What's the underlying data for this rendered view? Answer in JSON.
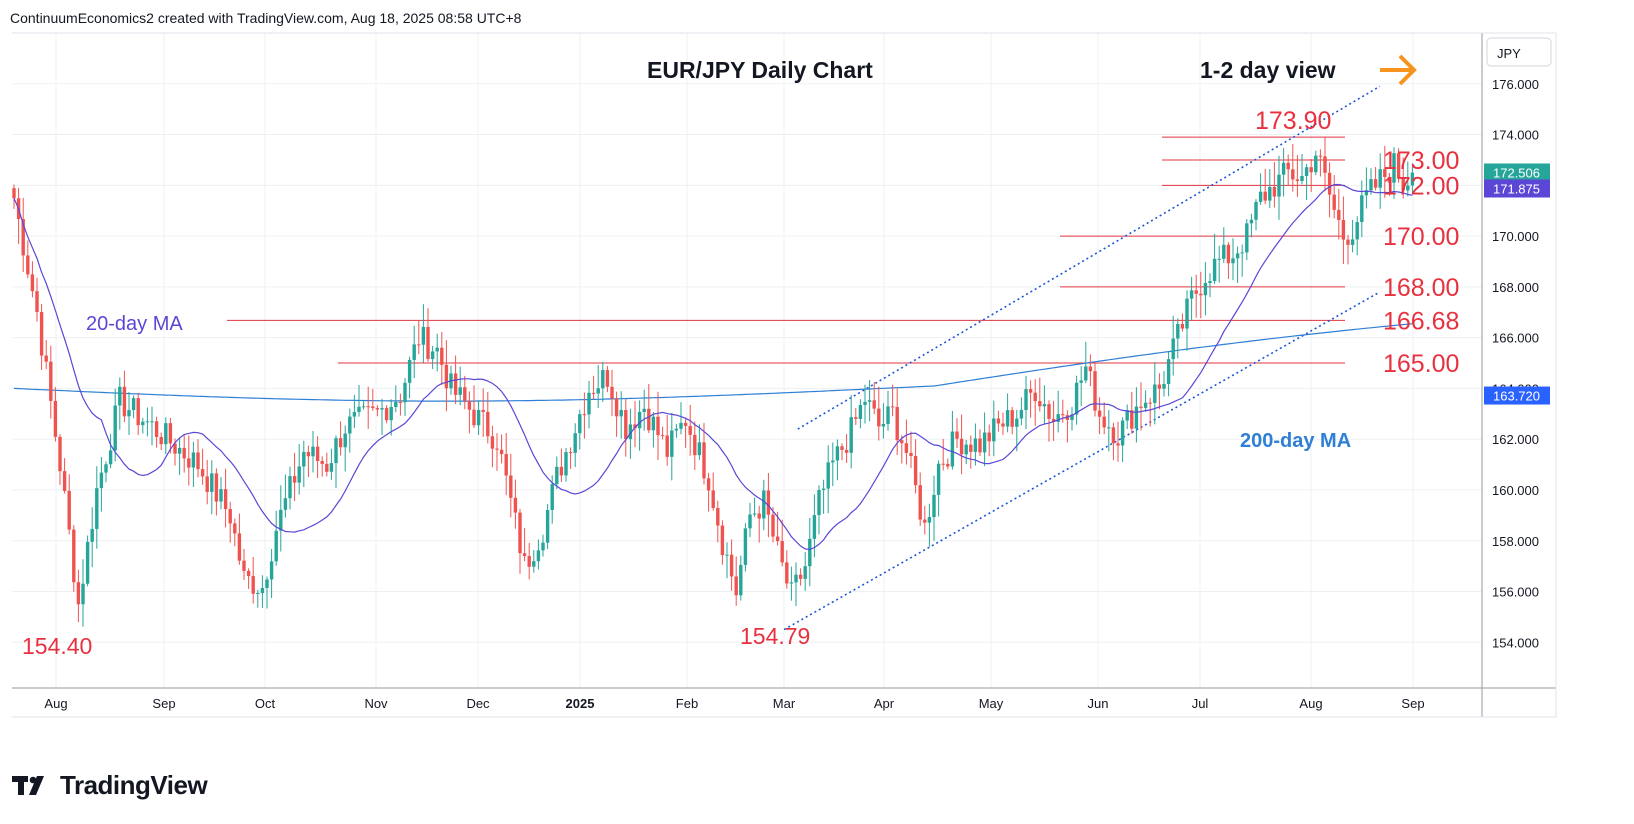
{
  "header": {
    "attribution": "ContinuumEconomics2 created with TradingView.com, Aug 18, 2025 08:58 UTC+8"
  },
  "brand": {
    "name": "TradingView",
    "logo_icon": "tradingview-logo-icon"
  },
  "colors": {
    "bull": "#26a69a",
    "bear": "#ef5350",
    "ma20": "#5b47d6",
    "ma200": "#2f7fd6",
    "level": "#e03540",
    "level_label": "#e8313f",
    "channel": "#1e56d6",
    "arrow": "#f7941d",
    "grid": "#edf0f3",
    "axis_text": "#131722"
  },
  "chart_data": {
    "type": "candlestick",
    "symbol": "JPY",
    "title": "EUR/JPY Daily Chart",
    "subtitle": "1-2 day view",
    "arrow_icon": "arrow-right-icon",
    "ylim": [
      152.2,
      178.0
    ],
    "y_ticks": [
      "154.000",
      "156.000",
      "158.000",
      "160.000",
      "162.000",
      "164.000",
      "166.000",
      "168.000",
      "170.000",
      "172.000",
      "174.000",
      "176.000"
    ],
    "x_ticks": [
      "Aug",
      "Sep",
      "Oct",
      "Nov",
      "Dec",
      "2025",
      "Feb",
      "Mar",
      "Apr",
      "May",
      "Jun",
      "Jul",
      "Aug",
      "Sep"
    ],
    "bold_x_tick": "2025",
    "last_price": "172.506",
    "ma20_value": "171.875",
    "ma200_value": "163.720",
    "ma20_label": "20-day MA",
    "ma200_label": "200-day MA",
    "levels": [
      {
        "value": 173.9,
        "label": "173.90",
        "from": "Jul"
      },
      {
        "value": 173.0,
        "label": "173.00",
        "from": "Jul"
      },
      {
        "value": 172.0,
        "label": "172.00",
        "from": "Jul"
      },
      {
        "value": 170.0,
        "label": "170.00",
        "from": "Jun"
      },
      {
        "value": 168.0,
        "label": "168.00",
        "from": "Jun"
      },
      {
        "value": 166.68,
        "label": "166.68",
        "from": "Oct"
      },
      {
        "value": 165.0,
        "label": "165.00",
        "from": "Nov"
      }
    ],
    "lows": [
      {
        "value": 154.4,
        "label": "154.40",
        "month": "Aug 2024"
      },
      {
        "value": 154.79,
        "label": "154.79",
        "month": "Feb 2025"
      }
    ],
    "channel_upper": [
      {
        "date": "2025-03-05",
        "y": 162.4
      },
      {
        "date": "2025-08-21",
        "y": 175.9
      }
    ],
    "channel_lower": [
      {
        "date": "2025-03-01",
        "y": 154.5
      },
      {
        "date": "2025-08-21",
        "y": 167.8
      }
    ],
    "price_path": [
      [
        0,
        171.5
      ],
      [
        5,
        167.0
      ],
      [
        10,
        161.0
      ],
      [
        14,
        155.5
      ],
      [
        18,
        160.0
      ],
      [
        23,
        163.5
      ],
      [
        30,
        162.5
      ],
      [
        40,
        161.0
      ],
      [
        47,
        159.0
      ],
      [
        50,
        156.5
      ],
      [
        54,
        156.2
      ],
      [
        57,
        158.5
      ],
      [
        63,
        161.5
      ],
      [
        68,
        161.0
      ],
      [
        72,
        162.5
      ],
      [
        79,
        163.0
      ],
      [
        84,
        163.8
      ],
      [
        88,
        166.0
      ],
      [
        92,
        165.5
      ],
      [
        95,
        164.0
      ],
      [
        100,
        163.0
      ],
      [
        105,
        162.0
      ],
      [
        108,
        159.5
      ],
      [
        111,
        157.0
      ],
      [
        115,
        158.5
      ],
      [
        118,
        160.5
      ],
      [
        121,
        162.0
      ],
      [
        125,
        164.0
      ],
      [
        129,
        164.5
      ],
      [
        133,
        162.5
      ],
      [
        137,
        163.3
      ],
      [
        142,
        161.5
      ],
      [
        146,
        162.8
      ],
      [
        151,
        160.5
      ],
      [
        154,
        158.0
      ],
      [
        157,
        156.0
      ],
      [
        160,
        159.0
      ],
      [
        163,
        159.5
      ],
      [
        166,
        157.5
      ],
      [
        169,
        155.8
      ],
      [
        172,
        157.0
      ],
      [
        175,
        159.5
      ],
      [
        178,
        161.0
      ],
      [
        182,
        162.3
      ],
      [
        185,
        163.6
      ],
      [
        188,
        162.5
      ],
      [
        191,
        163.0
      ],
      [
        194,
        161.5
      ],
      [
        196,
        160.0
      ],
      [
        198,
        158.5
      ],
      [
        201,
        161.0
      ],
      [
        205,
        162.0
      ],
      [
        210,
        161.8
      ],
      [
        214,
        162.5
      ],
      [
        218,
        163.0
      ],
      [
        222,
        164.0
      ],
      [
        226,
        162.8
      ],
      [
        230,
        163.5
      ],
      [
        233,
        164.8
      ],
      [
        236,
        163.0
      ],
      [
        240,
        162.2
      ],
      [
        245,
        163.5
      ],
      [
        249,
        164.0
      ],
      [
        253,
        166.0
      ],
      [
        256,
        167.5
      ],
      [
        259,
        168.5
      ],
      [
        262,
        169.0
      ],
      [
        265,
        169.3
      ],
      [
        268,
        170.0
      ],
      [
        271,
        171.5
      ],
      [
        274,
        172.0
      ],
      [
        277,
        172.5
      ],
      [
        280,
        172.3
      ],
      [
        283,
        173.3
      ],
      [
        285,
        172.2
      ],
      [
        287,
        171.0
      ],
      [
        289,
        170.0
      ],
      [
        291,
        170.3
      ],
      [
        294,
        171.5
      ],
      [
        297,
        172.2
      ],
      [
        300,
        172.8
      ],
      [
        302,
        172.1
      ],
      [
        304,
        172.5
      ]
    ]
  }
}
